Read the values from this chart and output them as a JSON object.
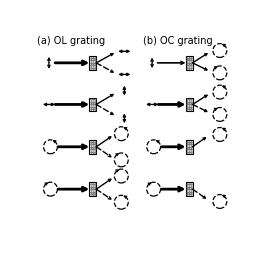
{
  "title_a": "(a) OL grating",
  "title_b": "(b) OC grating",
  "bg_color": "#ffffff",
  "text_color": "#000000",
  "title_fontsize": 7.0,
  "fig_width": 2.75,
  "fig_height": 2.8,
  "dpi": 100
}
